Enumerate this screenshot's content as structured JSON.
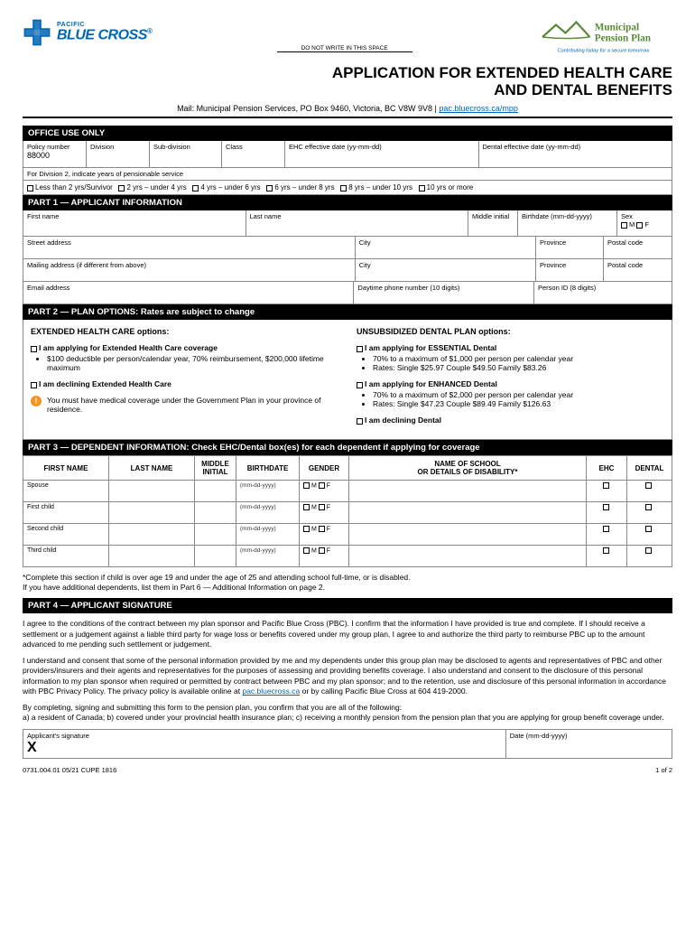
{
  "header": {
    "pacific": "PACIFIC",
    "bluecross": "BLUE CROSS",
    "donotwrite": "DO NOT WRITE IN THIS SPACE",
    "mpp_line1": "Municipal",
    "mpp_line2": "Pension Plan",
    "mpp_tag": "Contributing today for a secure tomorrow"
  },
  "title": {
    "line1": "APPLICATION FOR EXTENDED HEALTH CARE",
    "line2": "AND DENTAL BENEFITS"
  },
  "mail": {
    "prefix": "Mail: Municipal Pension Services, PO Box 9460, Victoria, BC V8W 9V8",
    "link": "pac.bluecross.ca/mpp"
  },
  "office": {
    "header": "OFFICE USE ONLY",
    "policy_label": "Policy number",
    "policy_value": "88000",
    "division": "Division",
    "subdivision": "Sub-division",
    "class": "Class",
    "ehc_date": "EHC effective date (yy-mm-dd)",
    "dental_date": "Dental effective date (yy-mm-dd)",
    "div2_note": "For Division 2, indicate years of pensionable service",
    "ranges": [
      "Less than 2 yrs/Survivor",
      "2 yrs – under 4 yrs",
      "4 yrs – under 6 yrs",
      "6 yrs – under 8 yrs",
      "8 yrs – under 10 yrs",
      "10 yrs or more"
    ]
  },
  "part1": {
    "header": "PART 1 — APPLICANT INFORMATION",
    "firstname": "First name",
    "lastname": "Last name",
    "middle": "Middle initial",
    "birthdate": "Birthdate (mm-dd-yyyy)",
    "sex": "Sex",
    "m": "M",
    "f": "F",
    "street": "Street address",
    "city": "City",
    "province": "Province",
    "postal": "Postal code",
    "mailing": "Mailing address (if different from above)",
    "email": "Email address",
    "phone": "Daytime phone number (10 digits)",
    "personid": "Person ID (8 digits)"
  },
  "part2": {
    "header": "PART 2 — PLAN OPTIONS: Rates are subject to change",
    "ehc_heading": "EXTENDED HEALTH CARE options:",
    "ehc_apply": "I am applying for Extended Health Care coverage",
    "ehc_apply_b1": "$100 deductible per person/calendar year, 70% reimbursement, $200,000 lifetime maximum",
    "ehc_decline": "I am declining Extended Health Care",
    "dental_heading": "UNSUBSIDIZED DENTAL PLAN options:",
    "d_ess": "I am applying for ESSENTIAL Dental",
    "d_ess_b1": "70% to a maximum of $1,000 per person per calendar year",
    "d_ess_b2": "Rates:  Single $25.97  Couple $49.50  Family $83.26",
    "d_enh": "I am applying for ENHANCED Dental",
    "d_enh_b1": "70% to a maximum of $2,000 per person per calendar year",
    "d_enh_b2": "Rates:  Single $47.23  Couple $89.49  Family $126.63",
    "d_decline": "I am declining Dental",
    "warn": "You must have medical coverage under the Government Plan in your province of residence."
  },
  "part3": {
    "header": "PART 3 — DEPENDENT INFORMATION: Check EHC/Dental box(es) for each dependent if applying for coverage",
    "cols": [
      "FIRST NAME",
      "LAST NAME",
      "MIDDLE INITIAL",
      "BIRTHDATE",
      "GENDER",
      "NAME OF SCHOOL\nOR DETAILS OF DISABILITY*",
      "EHC",
      "DENTAL"
    ],
    "rows": [
      "Spouse",
      "First child",
      "Second child",
      "Third child"
    ],
    "birthdate_hint": "(mm-dd-yyyy)",
    "m": "M",
    "f": "F",
    "note": "*Complete this section if child is over age 19 and under the age of 25 and attending school full-time, or is disabled.\n  If you have additional dependents, list them in Part 6 — Additional Information on page 2."
  },
  "part4": {
    "header": "PART 4 — APPLICANT SIGNATURE",
    "p1": "I agree to the conditions of the contract between my plan sponsor and Pacific Blue Cross (PBC). I confirm that the information I have provided is true and complete. If I should receive a settlement or a judgement against a liable third party for wage loss or benefits covered under my group plan, I agree to and authorize the third party to reimburse PBC up to the amount advanced to me pending such settlement or judgement.",
    "p2a": "I understand and consent that some of the personal information provided by me and my dependents under this group plan may be disclosed to agents and representatives of PBC and other providers/insurers and their agents and representatives for the purposes of assessing and providing benefits coverage. I also understand and consent to the disclosure of this personal information to my plan sponsor when required or permitted by contract between PBC and my plan sponsor; and to the retention, use and disclosure of this personal information in accordance with PBC Privacy Policy. The privacy policy is available online at ",
    "p2link": "pac.bluecross.ca",
    "p2b": " or by calling Pacific Blue Cross at 604 419-2000.",
    "p3": "By completing, signing and submitting this form to the pension plan, you confirm that you are all of the following:\na) a resident of Canada; b) covered under your provincial health insurance plan; c) receiving a monthly pension from the pension plan that you are applying for group benefit coverage under.",
    "sig_label": "Applicant's signature",
    "date_label": "Date (mm-dd-yyyy)"
  },
  "footer": {
    "code": "0731.004.01  05/21  CUPE 1816",
    "page": "1 of 2"
  },
  "colors": {
    "brand_blue": "#0066b3",
    "mpp_green": "#5a8a3a",
    "warn_orange": "#f7941e",
    "border": "#888888"
  }
}
